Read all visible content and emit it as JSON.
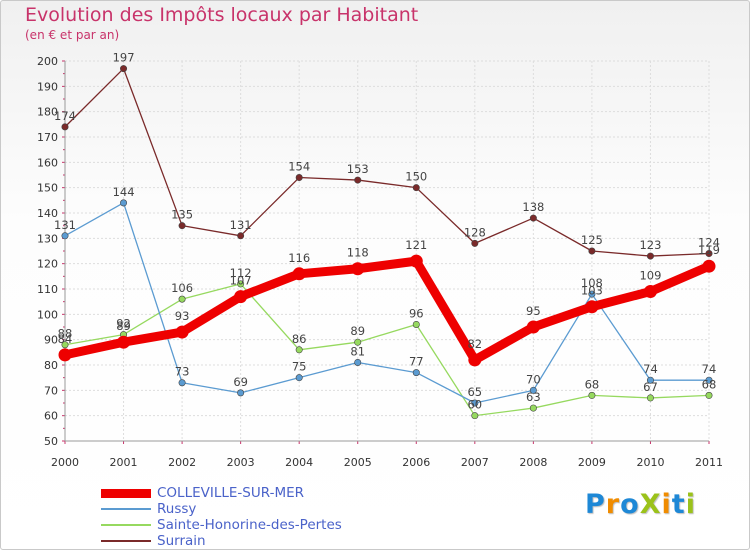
{
  "header": {
    "title": "Evolution des Impôts locaux par Habitant",
    "subtitle": "(en € et par an)"
  },
  "logo": {
    "text": "ProXiti",
    "letters": [
      "P",
      "r",
      "o",
      "X",
      "i",
      "t",
      "i"
    ],
    "colors": [
      "#1e88d6",
      "#f08c00",
      "#1e88d6",
      "#9bc21a",
      "#f08c00",
      "#1e88d6",
      "#9bc21a"
    ]
  },
  "chart_data": {
    "type": "line",
    "x": [
      2000,
      2001,
      2002,
      2003,
      2004,
      2005,
      2006,
      2007,
      2008,
      2009,
      2010,
      2011
    ],
    "ylim": [
      50,
      200
    ],
    "yticks": [
      50,
      60,
      70,
      80,
      90,
      100,
      110,
      120,
      130,
      140,
      150,
      160,
      170,
      180,
      190,
      200
    ],
    "grid": true,
    "legend_position": "bottom-left",
    "series": [
      {
        "name": "COLLEVILLE-SUR-MER",
        "color": "#ee0000",
        "values": [
          84,
          89,
          93,
          107,
          116,
          118,
          121,
          82,
          95,
          103,
          109,
          119
        ]
      },
      {
        "name": "Russy",
        "color": "#5b9bd1",
        "values": [
          131,
          144,
          73,
          69,
          75,
          81,
          77,
          65,
          70,
          108,
          74,
          74
        ]
      },
      {
        "name": "Sainte-Honorine-des-Pertes",
        "color": "#96d95f",
        "values": [
          88,
          92,
          106,
          112,
          86,
          89,
          96,
          60,
          63,
          68,
          67,
          68
        ]
      },
      {
        "name": "Surrain",
        "color": "#7a2a2a",
        "values": [
          174,
          197,
          135,
          131,
          154,
          153,
          150,
          128,
          138,
          125,
          123,
          124
        ]
      }
    ]
  }
}
